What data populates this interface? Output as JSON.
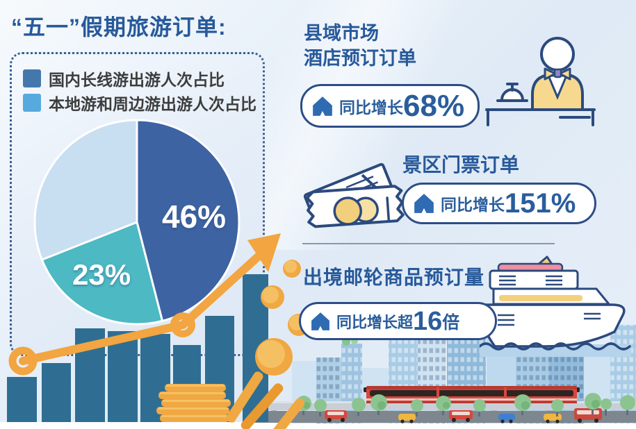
{
  "title": "“五一”假期旅游订单:",
  "legend": {
    "items": [
      {
        "label": "国内长线游出游人次占比",
        "color": "#4478ad"
      },
      {
        "label": "本地游和周边游出游人次占比",
        "color": "#57aade"
      }
    ]
  },
  "chart_data": {
    "type": "pie",
    "title": "“五一”假期旅游订单",
    "start_angle_deg": 0,
    "direction": "clockwise",
    "legend_position": "top-left",
    "slices": [
      {
        "label": "国内长线游出游人次占比",
        "value": 46,
        "display": "46%",
        "color": "#3d63a2"
      },
      {
        "label": "本地游和周边游出游人次占比",
        "value": 23,
        "display": "23%",
        "color": "#4cb9c3"
      },
      {
        "label": "",
        "value": 31,
        "display": "",
        "color": "#c8def1"
      }
    ],
    "callouts": [
      {
        "heading": "县域市场酒店预订订单",
        "metric": "同比增长68%"
      },
      {
        "heading": "景区门票订单",
        "metric": "同比增长151%"
      },
      {
        "heading": "出境邮轮商品预订量",
        "metric": "同比增长超16倍"
      }
    ]
  },
  "stats": [
    {
      "heading_line1": "县域市场",
      "heading_line2": "酒店预订订单",
      "growth_prefix": "同比增长",
      "growth_value": "68%",
      "growth_suffix": "",
      "icon": "bellhop-desk"
    },
    {
      "heading_line1": "景区门票订单",
      "heading_line2": "",
      "growth_prefix": "同比增长",
      "growth_value": "151%",
      "growth_suffix": "",
      "icon": "tickets"
    },
    {
      "heading_line1": "出境邮轮商品预订量",
      "heading_line2": "",
      "growth_prefix": "同比增长超",
      "growth_value": "16",
      "growth_suffix": "倍",
      "icon": "cruise-ship"
    }
  ],
  "colors": {
    "title_blue": "#27599a",
    "navy_outline": "#2b4a7e",
    "accent_orange": "#f2a540",
    "bar_teal": "#2f6e92",
    "coin_gold": "#f0a843",
    "panel_bg": "#dfe9f6",
    "pie_dark_blue": "#3d63a2",
    "pie_teal": "#4cb9c3",
    "pie_light_blue": "#c8def1",
    "train_red": "#d8473c"
  }
}
